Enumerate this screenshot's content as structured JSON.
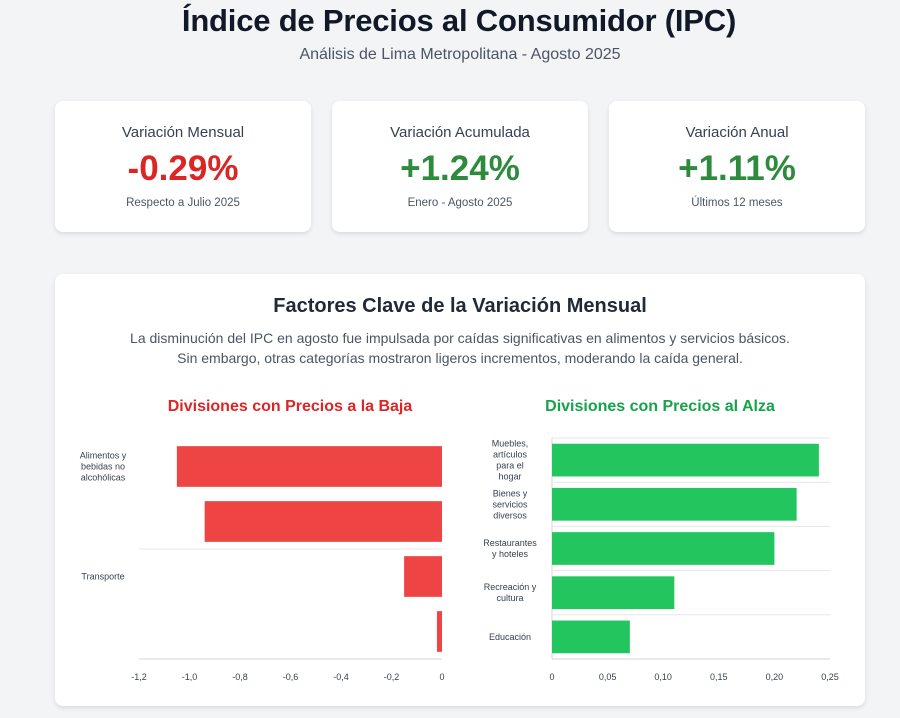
{
  "header": {
    "title": "Índice de Precios al Consumidor (IPC)",
    "subtitle": "Análisis de Lima Metropolitana - Agosto 2025"
  },
  "cards": [
    {
      "label": "Variación Mensual",
      "value": "-0.29%",
      "note": "Respecto a Julio 2025",
      "color": "#dc2626"
    },
    {
      "label": "Variación Acumulada",
      "value": "+1.24%",
      "note": "Enero - Agosto 2025",
      "color": "#2e8b3e"
    },
    {
      "label": "Variación Anual",
      "value": "+1.11%",
      "note": "Últimos 12 meses",
      "color": "#2e8b3e"
    }
  ],
  "factors": {
    "title": "Factores Clave de la Variación Mensual",
    "description": "La disminución del IPC en agosto fue impulsada por caídas significativas en alimentos y servicios básicos. Sin embargo, otras categorías mostraron ligeros incrementos, moderando la caída general."
  },
  "chart_data": [
    {
      "type": "bar",
      "orientation": "horizontal",
      "title": "Divisiones con Precios a la Baja",
      "title_color": "#dc2626",
      "bar_color": "#ef4444",
      "categories": [
        "Alimentos y bebidas no alcohólicas",
        "",
        "Transporte",
        ""
      ],
      "values": [
        -1.05,
        -0.94,
        -0.15,
        -0.02
      ],
      "xlim": [
        -1.2,
        0
      ],
      "xticks": [
        "-1,2",
        "-1,0",
        "-0,8",
        "-0,6",
        "-0,4",
        "-0,2",
        "0"
      ],
      "grid": true,
      "legend": "none"
    },
    {
      "type": "bar",
      "orientation": "horizontal",
      "title": "Divisiones con Precios al Alza",
      "title_color": "#16a34a",
      "bar_color": "#22c55e",
      "categories": [
        "Muebles, artículos para el hogar",
        "Bienes y servicios diversos",
        "Restaurantes y hoteles",
        "Recreación y cultura",
        "Educación"
      ],
      "values": [
        0.24,
        0.22,
        0.2,
        0.11,
        0.07
      ],
      "xlim": [
        0,
        0.25
      ],
      "xticks": [
        "0",
        "0,05",
        "0,10",
        "0,15",
        "0,20",
        "0,25"
      ],
      "grid": true,
      "legend": "none"
    }
  ]
}
